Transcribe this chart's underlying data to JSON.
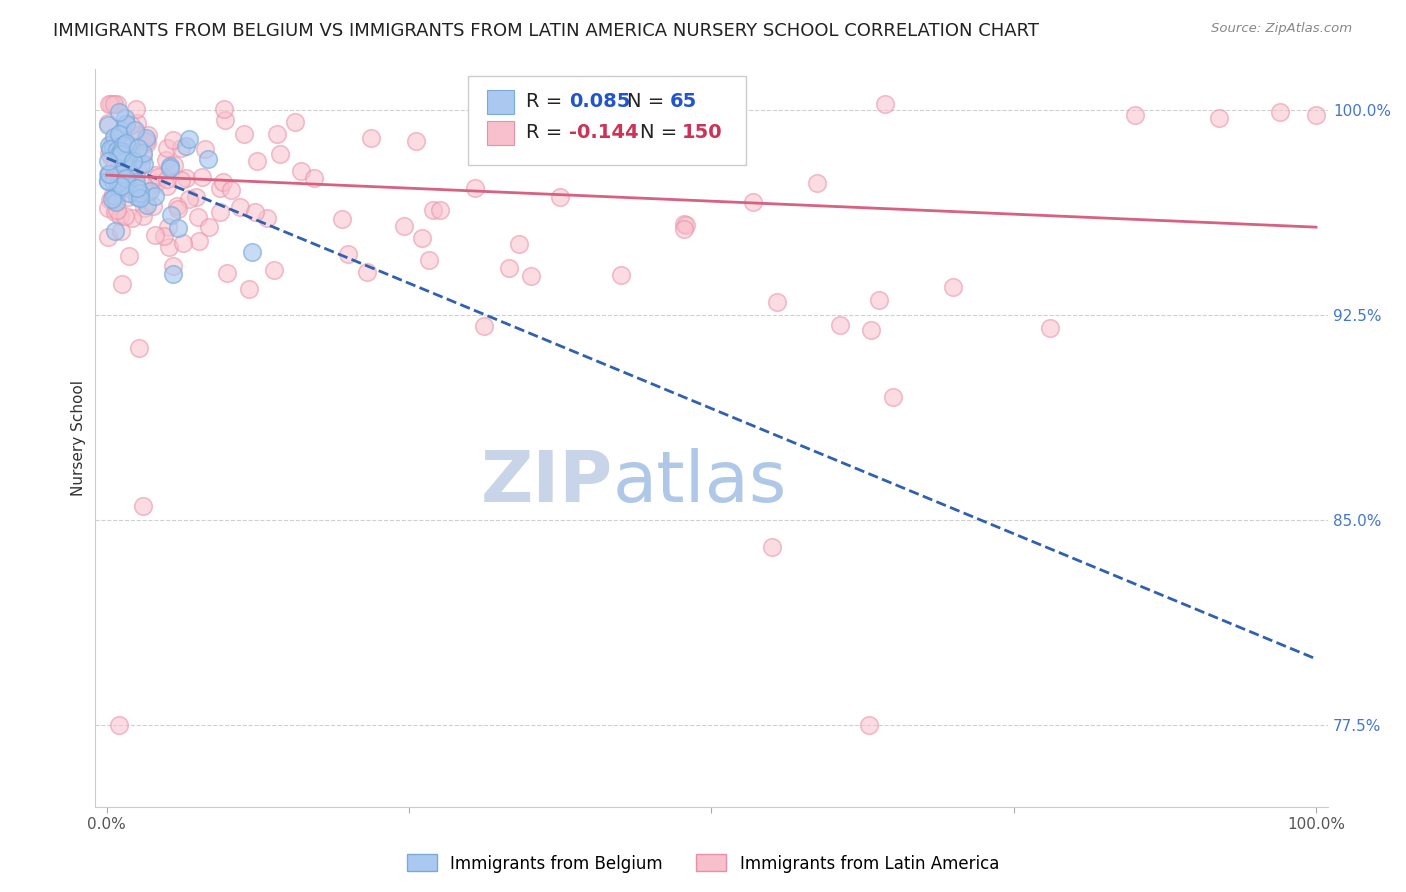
{
  "title": "IMMIGRANTS FROM BELGIUM VS IMMIGRANTS FROM LATIN AMERICA NURSERY SCHOOL CORRELATION CHART",
  "source": "Source: ZipAtlas.com",
  "ylabel": "Nursery School",
  "xlim": [
    0.0,
    1.0
  ],
  "ylim": [
    0.745,
    1.015
  ],
  "yticks": [
    0.775,
    0.85,
    0.925,
    1.0
  ],
  "ytick_labels": [
    "77.5%",
    "85.0%",
    "92.5%",
    "100.0%"
  ],
  "blue_R": 0.085,
  "blue_N": 65,
  "pink_R": -0.144,
  "pink_N": 150,
  "blue_fill_color": "#aac8f0",
  "blue_edge_color": "#7aaad8",
  "pink_fill_color": "#f8c0cc",
  "pink_edge_color": "#e890a8",
  "blue_line_color": "#3060b0",
  "pink_line_color": "#d86080",
  "legend_blue_label": "Immigrants from Belgium",
  "legend_pink_label": "Immigrants from Latin America",
  "watermark_zip": "ZIP",
  "watermark_atlas": "atlas",
  "background_color": "#ffffff",
  "grid_color": "#d0d0d0",
  "title_fontsize": 13,
  "axis_label_fontsize": 11,
  "tick_label_fontsize": 11,
  "legend_fontsize": 14,
  "watermark_fontsize": 52,
  "zip_color": "#c8d4e8",
  "atlas_color": "#b0c8e8",
  "seed": 7
}
